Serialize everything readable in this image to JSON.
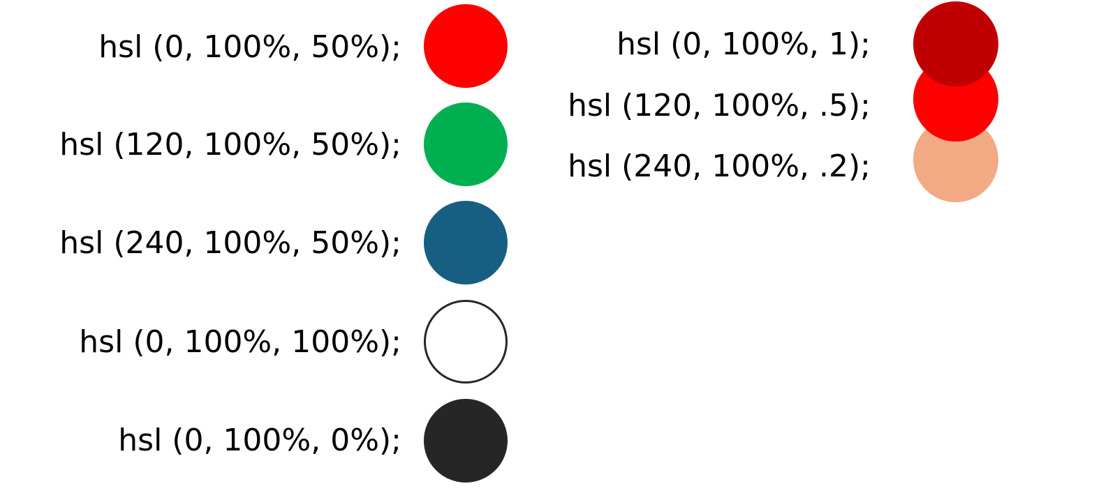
{
  "left_column": [
    {
      "label": "hsl (0, 100%, 50%);",
      "color": "#ff0000",
      "outline": ""
    },
    {
      "label": "hsl (120, 100%, 50%);",
      "color": "#00b050",
      "outline": ""
    },
    {
      "label": "hsl (240, 100%, 50%);",
      "color": "#175f82",
      "outline": ""
    },
    {
      "label": "hsl (0, 100%, 100%);",
      "color": "#ffffff",
      "outline": "#262626"
    },
    {
      "label": "hsl (0, 100%, 0%);",
      "color": "#262626",
      "outline": ""
    }
  ],
  "right_column": [
    {
      "label": "hsl (0, 100%, 1);",
      "color": "#c00000"
    },
    {
      "label": "hsl (120, 100%, .5);",
      "color": "#ff0000"
    },
    {
      "label": "hsl (240, 100%, .2);",
      "color": "#f2aa84"
    }
  ]
}
